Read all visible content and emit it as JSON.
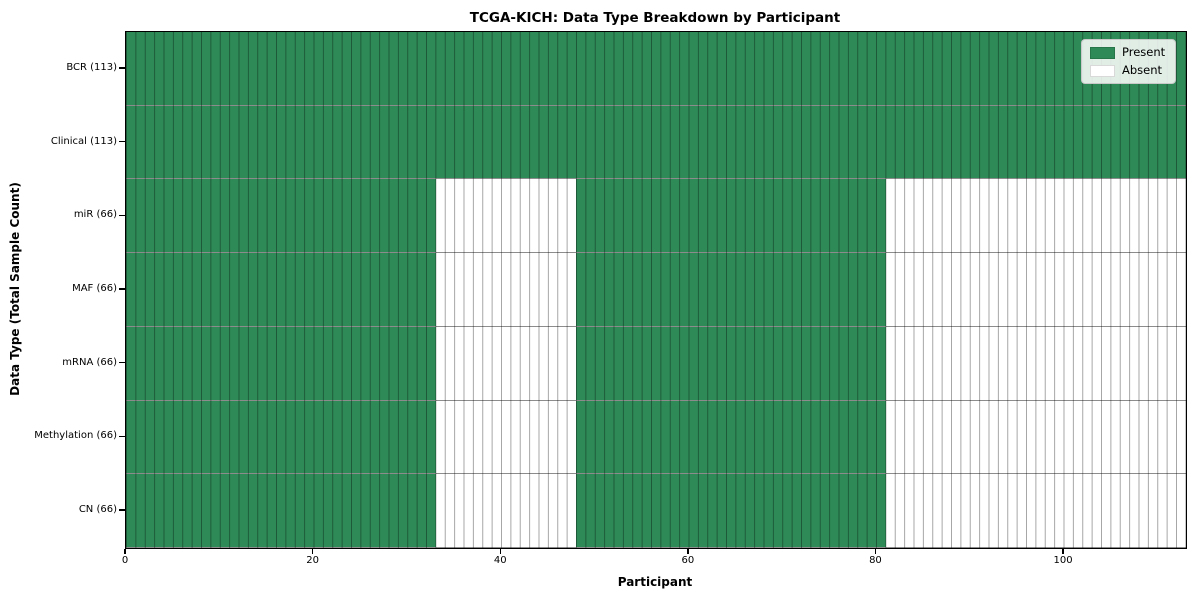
{
  "chart_data": {
    "type": "heatmap",
    "title": "TCGA-KICH: Data Type Breakdown by Participant",
    "xlabel": "Participant",
    "ylabel": "Data Type (Total Sample Count)",
    "xlim": [
      0,
      113
    ],
    "n_participants": 113,
    "x_ticks": [
      0,
      20,
      40,
      60,
      80,
      100
    ],
    "grid": "vertical column separators, one per participant",
    "rows": [
      {
        "label": "BCR (113)",
        "data_type": "BCR",
        "total_samples": 113,
        "present_segments": [
          [
            0,
            113
          ]
        ]
      },
      {
        "label": "Clinical (113)",
        "data_type": "Clinical",
        "total_samples": 113,
        "present_segments": [
          [
            0,
            113
          ]
        ]
      },
      {
        "label": "miR (66)",
        "data_type": "miR",
        "total_samples": 66,
        "present_segments": [
          [
            0,
            33
          ],
          [
            48,
            81
          ]
        ]
      },
      {
        "label": "MAF (66)",
        "data_type": "MAF",
        "total_samples": 66,
        "present_segments": [
          [
            0,
            33
          ],
          [
            48,
            81
          ]
        ]
      },
      {
        "label": "mRNA (66)",
        "data_type": "mRNA",
        "total_samples": 66,
        "present_segments": [
          [
            0,
            33
          ],
          [
            48,
            81
          ]
        ]
      },
      {
        "label": "Methylation (66)",
        "data_type": "Methylation",
        "total_samples": 66,
        "present_segments": [
          [
            0,
            33
          ],
          [
            48,
            81
          ]
        ]
      },
      {
        "label": "CN (66)",
        "data_type": "CN",
        "total_samples": 66,
        "present_segments": [
          [
            0,
            33
          ],
          [
            48,
            81
          ]
        ]
      }
    ],
    "legend": {
      "position": "upper right",
      "entries": [
        {
          "label": "Present",
          "color": "#2e8b57"
        },
        {
          "label": "Absent",
          "color": "#ffffff"
        }
      ]
    },
    "colors": {
      "present": "#2e8b57",
      "absent": "#ffffff",
      "gridline": "rgba(0,0,0,0.35)",
      "row_separator": "rgba(0,0,0,0.45)",
      "spine": "#000000",
      "background": "#ffffff"
    }
  }
}
